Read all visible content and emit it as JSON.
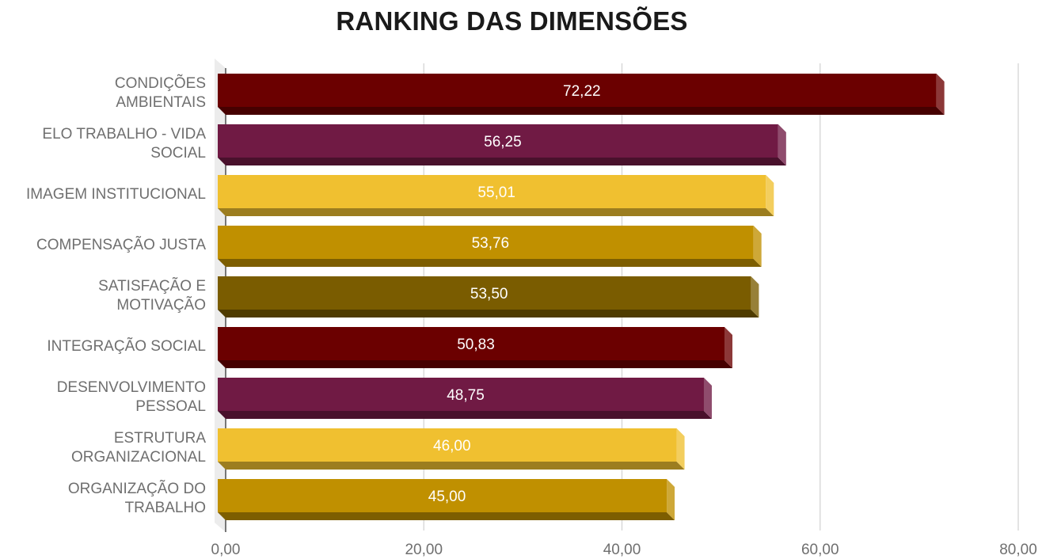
{
  "chart_data": {
    "type": "bar",
    "orientation": "horizontal",
    "title": "RANKING DAS DIMENSÕES",
    "categories": [
      [
        "CONDIÇÕES",
        "AMBIENTAIS"
      ],
      [
        "ELO TRABALHO - VIDA",
        "SOCIAL"
      ],
      [
        "IMAGEM INSTITUCIONAL"
      ],
      [
        "COMPENSAÇÃO JUSTA"
      ],
      [
        "SATISFAÇÃO E",
        "MOTIVAÇÃO"
      ],
      [
        "INTEGRAÇÃO SOCIAL"
      ],
      [
        "DESENVOLVIMENTO",
        "PESSOAL"
      ],
      [
        "ESTRUTURA",
        "ORGANIZACIONAL"
      ],
      [
        "ORGANIZAÇÃO DO",
        "TRABALHO"
      ]
    ],
    "values": [
      72.22,
      56.25,
      55.01,
      53.76,
      53.5,
      50.83,
      48.75,
      46.0,
      45.0
    ],
    "data_labels": [
      "72,22",
      "56,25",
      "55,01",
      "53,76",
      "53,50",
      "50,83",
      "48,75",
      "46,00",
      "45,00"
    ],
    "colors": [
      "#6b0000",
      "#701a44",
      "#f0c030",
      "#c09000",
      "#7a5c00",
      "#6b0000",
      "#701a44",
      "#f0c030",
      "#c09000"
    ],
    "xlim": [
      0,
      80
    ],
    "x_ticks": [
      0,
      20,
      40,
      60,
      80
    ],
    "x_tick_labels": [
      "0,00",
      "20,00",
      "40,00",
      "60,00",
      "80,00"
    ],
    "grid": true,
    "legend": "none",
    "style": "3d"
  }
}
